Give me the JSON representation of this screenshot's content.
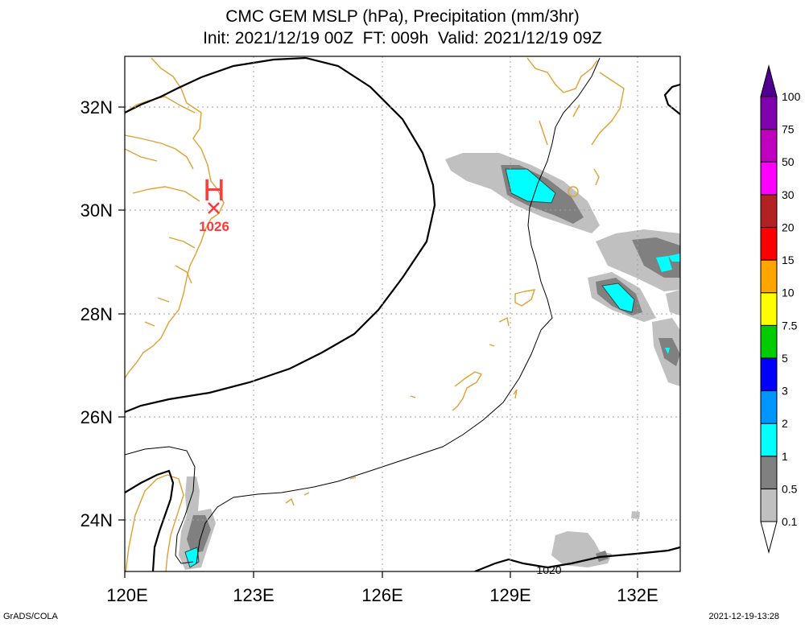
{
  "title": {
    "line1": "CMC GEM MSLP (hPa), Precipitation (mm/3hr)",
    "line2": "Init: 2021/12/19 00Z  FT: 009h  Valid: 2021/12/19 09Z"
  },
  "axes": {
    "x_labels": [
      "120E",
      "123E",
      "126E",
      "129E",
      "132E"
    ],
    "y_labels": [
      "32N",
      "30N",
      "28N",
      "26N",
      "24N"
    ],
    "lon_range": [
      120,
      133
    ],
    "lat_range": [
      23,
      33
    ]
  },
  "high_pressure": {
    "symbol": "H",
    "value": "1026",
    "marker": "x-marker-icon"
  },
  "contour_label": "1020",
  "colorbar": {
    "levels": [
      "0.1",
      "0.5",
      "1",
      "2",
      "3",
      "5",
      "7.5",
      "10",
      "15",
      "20",
      "30",
      "50",
      "75",
      "100"
    ],
    "colors": [
      "#ffffff",
      "#c0c0c0",
      "#808080",
      "#00ffff",
      "#0096ff",
      "#0000ff",
      "#00cc00",
      "#ffff00",
      "#ffa500",
      "#ff0000",
      "#b22222",
      "#ff00ff",
      "#c000c0",
      "#8000b0",
      "#500090"
    ]
  },
  "footer": {
    "left": "GrADS/COLA",
    "right": "2021-12-19-13:28"
  }
}
